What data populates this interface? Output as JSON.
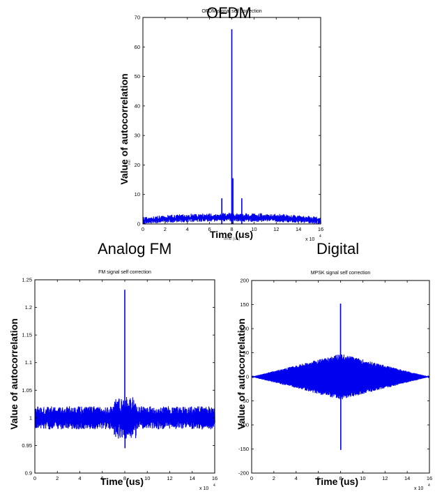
{
  "figure": {
    "ofdm_label": "OFDM",
    "fm_label": "Analog FM",
    "digital_label": "Digital"
  },
  "colors": {
    "series": "#0000ee",
    "axes": "#000000"
  },
  "chart_data": [
    {
      "id": "ofdm",
      "type": "line",
      "title": "OFDM signal self correction",
      "xlabel": "Time (us)",
      "ylabel": "Value of autocorrelation",
      "underlay_xlabel": "time (us)",
      "underlay_ylabel": "val",
      "xlim": [
        0,
        16
      ],
      "ylim": [
        0,
        70
      ],
      "xticks": [
        0,
        2,
        4,
        6,
        8,
        10,
        12,
        14,
        16
      ],
      "yticks": [
        0,
        10,
        20,
        30,
        40,
        50,
        60,
        70
      ],
      "x_multiplier": "x 10",
      "x_multiplier_exp": "4",
      "grid": false,
      "series": [
        {
          "values_description_peaks": true,
          "baseline_center": 1.2,
          "baseline_noise": 1.2,
          "baseline_hump": 1.3,
          "peaks": [
            [
              8,
              66
            ],
            [
              8.1,
              15.5
            ],
            [
              7.1,
              8.7
            ],
            [
              8.9,
              8.7
            ]
          ]
        }
      ]
    },
    {
      "id": "fm",
      "type": "line",
      "title": "FM signal self correction",
      "xlabel": "Time (us)",
      "ylabel": "Value of autocorrelation",
      "xlim": [
        0,
        16
      ],
      "ylim": [
        0.9,
        1.25
      ],
      "xticks": [
        0,
        2,
        4,
        6,
        8,
        10,
        12,
        14,
        16
      ],
      "yticks": [
        0.9,
        0.95,
        1,
        1.05,
        1.1,
        1.15,
        1.2,
        1.25
      ],
      "x_multiplier": "x 10",
      "x_multiplier_exp": "4",
      "grid": false,
      "series": [
        {
          "baseline_center": 1.0,
          "baseline_noise": 0.015,
          "peaks": [
            [
              8,
              1.232
            ],
            [
              8.02,
              0.945
            ]
          ]
        }
      ]
    },
    {
      "id": "mpsk",
      "type": "line",
      "title": "MPSK signal self correction",
      "xlabel": "Time (us)",
      "ylabel": "Value of autocorrelation",
      "xlim": [
        0,
        16
      ],
      "ylim": [
        -200,
        200
      ],
      "xticks": [
        0,
        2,
        4,
        6,
        8,
        10,
        12,
        14,
        16
      ],
      "yticks": [
        -200,
        -150,
        -100,
        -50,
        0,
        50,
        100,
        150,
        200
      ],
      "x_multiplier": "x 10",
      "x_multiplier_exp": "4",
      "grid": false,
      "series": [
        {
          "envelope_peak": 48,
          "envelope_center": 8,
          "peaks": [
            [
              8,
              152
            ],
            [
              8.02,
              -152
            ]
          ]
        }
      ]
    }
  ]
}
